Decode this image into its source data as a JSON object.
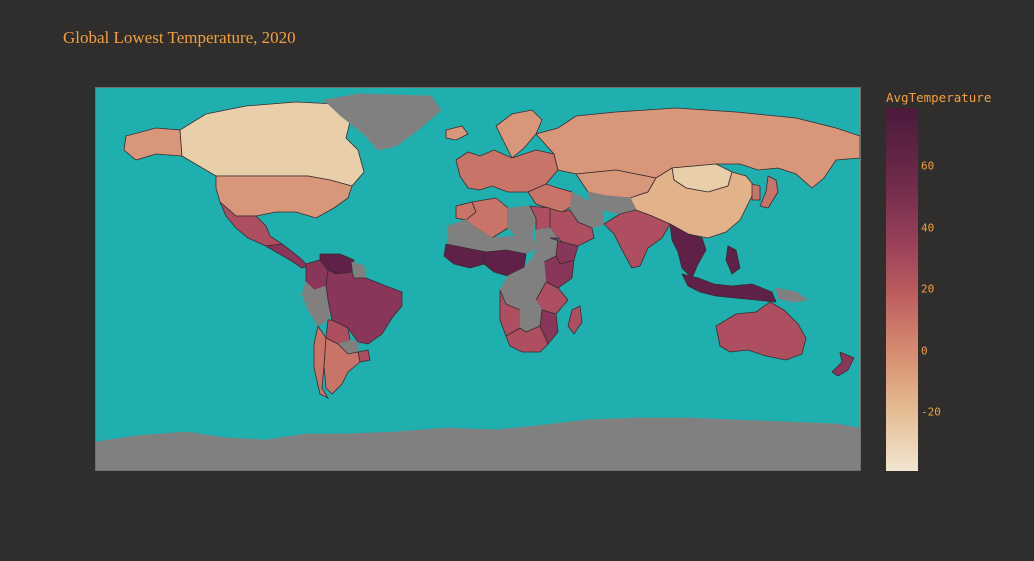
{
  "title": "Global Lowest Temperature, 2020",
  "colorbar": {
    "title": "AvgTemperature",
    "ticks": [
      "60",
      "40",
      "20",
      "0",
      "-20"
    ],
    "range": [
      -38,
      79
    ]
  },
  "colors": {
    "background": "#302e2c",
    "ocean": "#20afaf",
    "land_no_data": "#808080",
    "borders": "#3a2a2e",
    "text_accent": "#f0a040"
  },
  "regions": [
    {
      "name": "Canada",
      "shade": 1
    },
    {
      "name": "Alaska",
      "shade": 3
    },
    {
      "name": "Greenland",
      "shade": null
    },
    {
      "name": "United States",
      "shade": 3
    },
    {
      "name": "Mexico",
      "shade": 5
    },
    {
      "name": "Central America",
      "shade": 6
    },
    {
      "name": "Colombia",
      "shade": 6
    },
    {
      "name": "Venezuela",
      "shade": 7
    },
    {
      "name": "Guianas",
      "shade": null
    },
    {
      "name": "Peru",
      "shade": null
    },
    {
      "name": "Brazil",
      "shade": 6
    },
    {
      "name": "Bolivia",
      "shade": 5
    },
    {
      "name": "Paraguay",
      "shade": null
    },
    {
      "name": "Argentina",
      "shade": 4
    },
    {
      "name": "Chile",
      "shade": 4
    },
    {
      "name": "Uruguay",
      "shade": 5
    },
    {
      "name": "Iceland",
      "shade": 3
    },
    {
      "name": "Scandinavia",
      "shade": 3
    },
    {
      "name": "Europe",
      "shade": 4
    },
    {
      "name": "Russia",
      "shade": 3
    },
    {
      "name": "Kazakhstan",
      "shade": 3
    },
    {
      "name": "Mongolia",
      "shade": 1
    },
    {
      "name": "China",
      "shade": 2
    },
    {
      "name": "Central Asia",
      "shade": null
    },
    {
      "name": "Middle East",
      "shade": 4
    },
    {
      "name": "Saudi Arabia",
      "shade": 5
    },
    {
      "name": "Iran",
      "shade": null
    },
    {
      "name": "India",
      "shade": 5
    },
    {
      "name": "Southeast Asia",
      "shade": 7
    },
    {
      "name": "Indonesia",
      "shade": 7
    },
    {
      "name": "Philippines",
      "shade": 7
    },
    {
      "name": "Japan",
      "shade": 4
    },
    {
      "name": "Korea",
      "shade": 4
    },
    {
      "name": "Algeria",
      "shade": 4
    },
    {
      "name": "Morocco",
      "shade": 4
    },
    {
      "name": "Libya",
      "shade": null
    },
    {
      "name": "Egypt",
      "shade": 5
    },
    {
      "name": "Sahel",
      "shade": null
    },
    {
      "name": "West Africa",
      "shade": 7
    },
    {
      "name": "Nigeria",
      "shade": 7
    },
    {
      "name": "Sudan",
      "shade": null
    },
    {
      "name": "Ethiopia",
      "shade": 6
    },
    {
      "name": "Kenya",
      "shade": 6
    },
    {
      "name": "Central Africa",
      "shade": null
    },
    {
      "name": "Tanzania",
      "shade": 5
    },
    {
      "name": "Angola",
      "shade": 5
    },
    {
      "name": "Zambia",
      "shade": null
    },
    {
      "name": "Mozambique",
      "shade": 6
    },
    {
      "name": "South Africa",
      "shade": 5
    },
    {
      "name": "Madagascar",
      "shade": 5
    },
    {
      "name": "Australia",
      "shade": 5
    },
    {
      "name": "New Zealand",
      "shade": 6
    },
    {
      "name": "Papua New Guinea",
      "shade": null
    },
    {
      "name": "Antarctica",
      "shade": null
    }
  ]
}
